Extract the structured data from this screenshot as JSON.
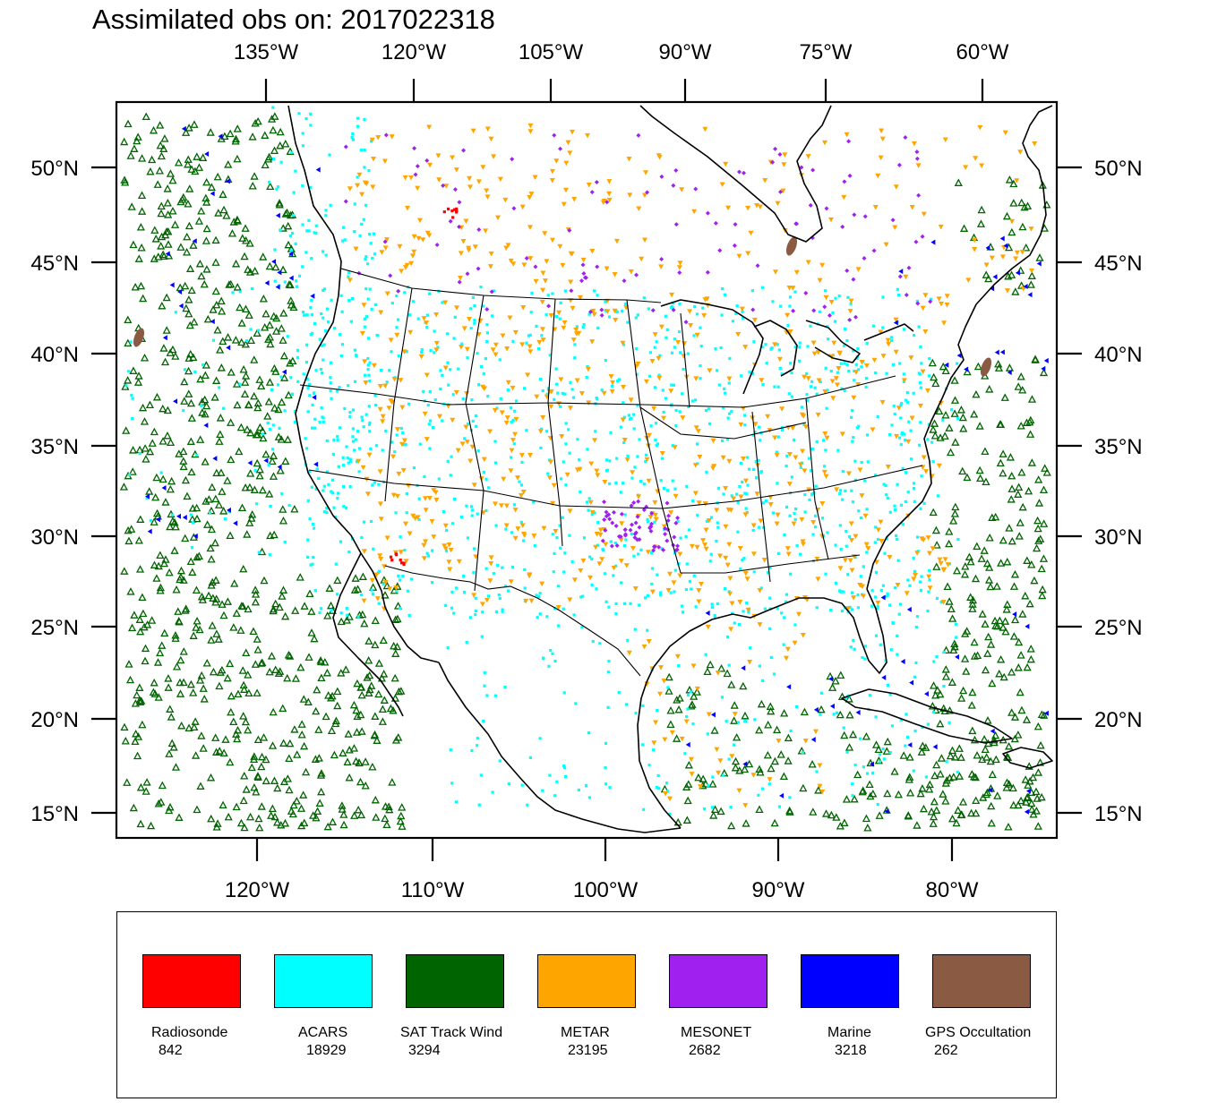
{
  "title": "Assimilated obs on: 2017022318",
  "top_lon_ticks": [
    "135°W",
    "120°W",
    "105°W",
    "90°W",
    "75°W",
    "60°W"
  ],
  "bottom_lon_ticks": [
    "120°W",
    "110°W",
    "100°W",
    "90°W",
    "80°W"
  ],
  "lat_ticks": [
    "50°N",
    "45°N",
    "40°N",
    "35°N",
    "30°N",
    "25°N",
    "20°N",
    "15°N"
  ],
  "legend": [
    {
      "label": "Radiosonde",
      "count": "842",
      "color": "#ff0000"
    },
    {
      "label": "ACARS",
      "count": "18929",
      "color": "#00ffff"
    },
    {
      "label": "SAT Track Wind",
      "count": "3294",
      "color": "#006400"
    },
    {
      "label": "METAR",
      "count": "23195",
      "color": "#ffa500"
    },
    {
      "label": "MESONET",
      "count": "2682",
      "color": "#a020f0"
    },
    {
      "label": "Marine",
      "count": "3218",
      "color": "#0000ff"
    },
    {
      "label": "GPS Occultation",
      "count": "262",
      "color": "#8b5a43"
    }
  ]
}
